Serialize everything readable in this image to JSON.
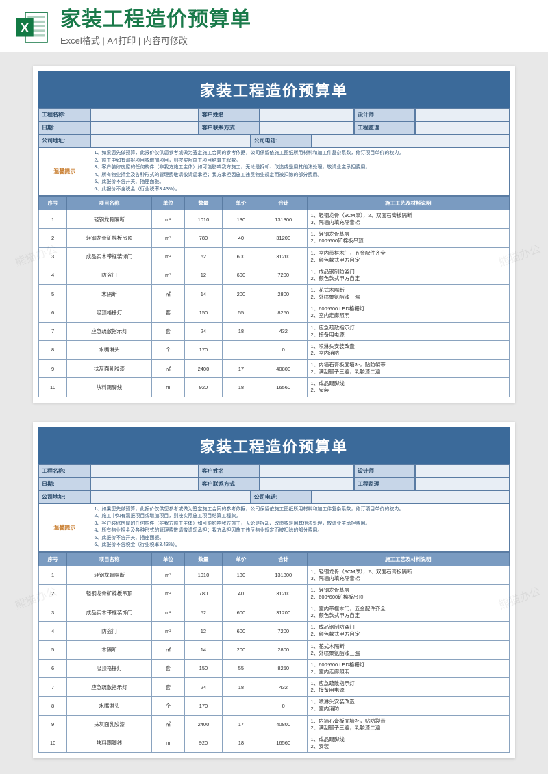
{
  "header": {
    "title": "家装工程造价预算单",
    "subtitle": "Excel格式 | A4打印 | 内容可修改"
  },
  "doc": {
    "title": "家装工程造价预算单",
    "info": {
      "project_label": "工程名称:",
      "customer_label": "客户姓名",
      "designer_label": "设计师",
      "date_label": "日期:",
      "contact_label": "客户联系方式",
      "supervisor_label": "工程监理",
      "addr_label": "公司地址:",
      "phone_label": "公司电话:"
    },
    "tips_label": "温馨提示",
    "tips": [
      "1、如果您先做预算，此报价仅供您参考或做为签定施工合同的参考依据，公司保留依施工图纸所用材料和加工件复杂系数，修订项目单价的权力。",
      "2、施工中如有漏报项目或增加项目，则按实际施工项目结算工程款。",
      "3、客户装修房屋的任何构件（非我方施工主体）如可能影响我方施工，无论是拆却、改造或是用其他法处理，敬请业主承担费用。",
      "4、所有物业押金及各种形式的管理费敬请敬请您承担；我方承担因施工违反物业规定而被扣除的部分费用。",
      "5、此报价不含开关、插座面板。",
      "6、此报价不含税金（行业税率3.43%）。"
    ],
    "columns": [
      "序号",
      "项目名称",
      "单位",
      "数量",
      "单价",
      "合计",
      "施工工艺及材料说明"
    ],
    "rows": [
      {
        "seq": "1",
        "name": "轻钢龙骨隔断",
        "unit": "m²",
        "qty": "1010",
        "price": "130",
        "total": "131300",
        "desc": "1、轻钢龙骨（9CM厚），2、双面石膏板隔断\n3、隔墙内填充隔音棉"
      },
      {
        "seq": "2",
        "name": "轻钢龙骨矿棉板吊顶",
        "unit": "m²",
        "qty": "780",
        "price": "40",
        "total": "31200",
        "desc": "1、轻钢龙骨基层\n2、600*600矿棉板吊顶"
      },
      {
        "seq": "3",
        "name": "成品实木带框装饰门",
        "unit": "m²",
        "qty": "52",
        "price": "600",
        "total": "31200",
        "desc": "1、室内带框木门，五金配件齐全\n2、颜色款式甲方自定"
      },
      {
        "seq": "4",
        "name": "防盗门",
        "unit": "m²",
        "qty": "12",
        "price": "600",
        "total": "7200",
        "desc": "1、成品钢制防盗门\n2、颜色款式甲方自定"
      },
      {
        "seq": "5",
        "name": "木隔断",
        "unit": "㎡",
        "qty": "14",
        "price": "200",
        "total": "2800",
        "desc": "1、花式木隔断\n2、外喷聚氨酯漆三遍"
      },
      {
        "seq": "6",
        "name": "吸顶格栅灯",
        "unit": "套",
        "qty": "150",
        "price": "55",
        "total": "8250",
        "desc": "1、600*600 LED格栅灯\n2、室内走廊照明"
      },
      {
        "seq": "7",
        "name": "应急疏散指示灯",
        "unit": "套",
        "qty": "24",
        "price": "18",
        "total": "432",
        "desc": "1、应急疏散指示灯\n2、接备用电源"
      },
      {
        "seq": "8",
        "name": "水嘴淋头",
        "unit": "个",
        "qty": "170",
        "price": "",
        "total": "0",
        "desc": "1、喷淋头安装改造\n2、室内消防"
      },
      {
        "seq": "9",
        "name": "抹灰面乳胶漆",
        "unit": "㎡",
        "qty": "2400",
        "price": "17",
        "total": "40800",
        "desc": "1、内墙石膏板面墙补，贴防裂带\n2、满刮腻子三遍，乳胶漆二遍"
      },
      {
        "seq": "10",
        "name": "块料踢脚线",
        "unit": "m",
        "qty": "920",
        "price": "18",
        "total": "16560",
        "desc": "1、成品踢脚线\n2、安装"
      }
    ]
  },
  "colors": {
    "brand_green": "#1a7a4a",
    "title_bg": "#3b6a9a",
    "header_bg": "#7a9bc1",
    "info_bg": "#c7d6e8",
    "border": "#5a7ca3"
  },
  "watermark": "熊猫办公"
}
